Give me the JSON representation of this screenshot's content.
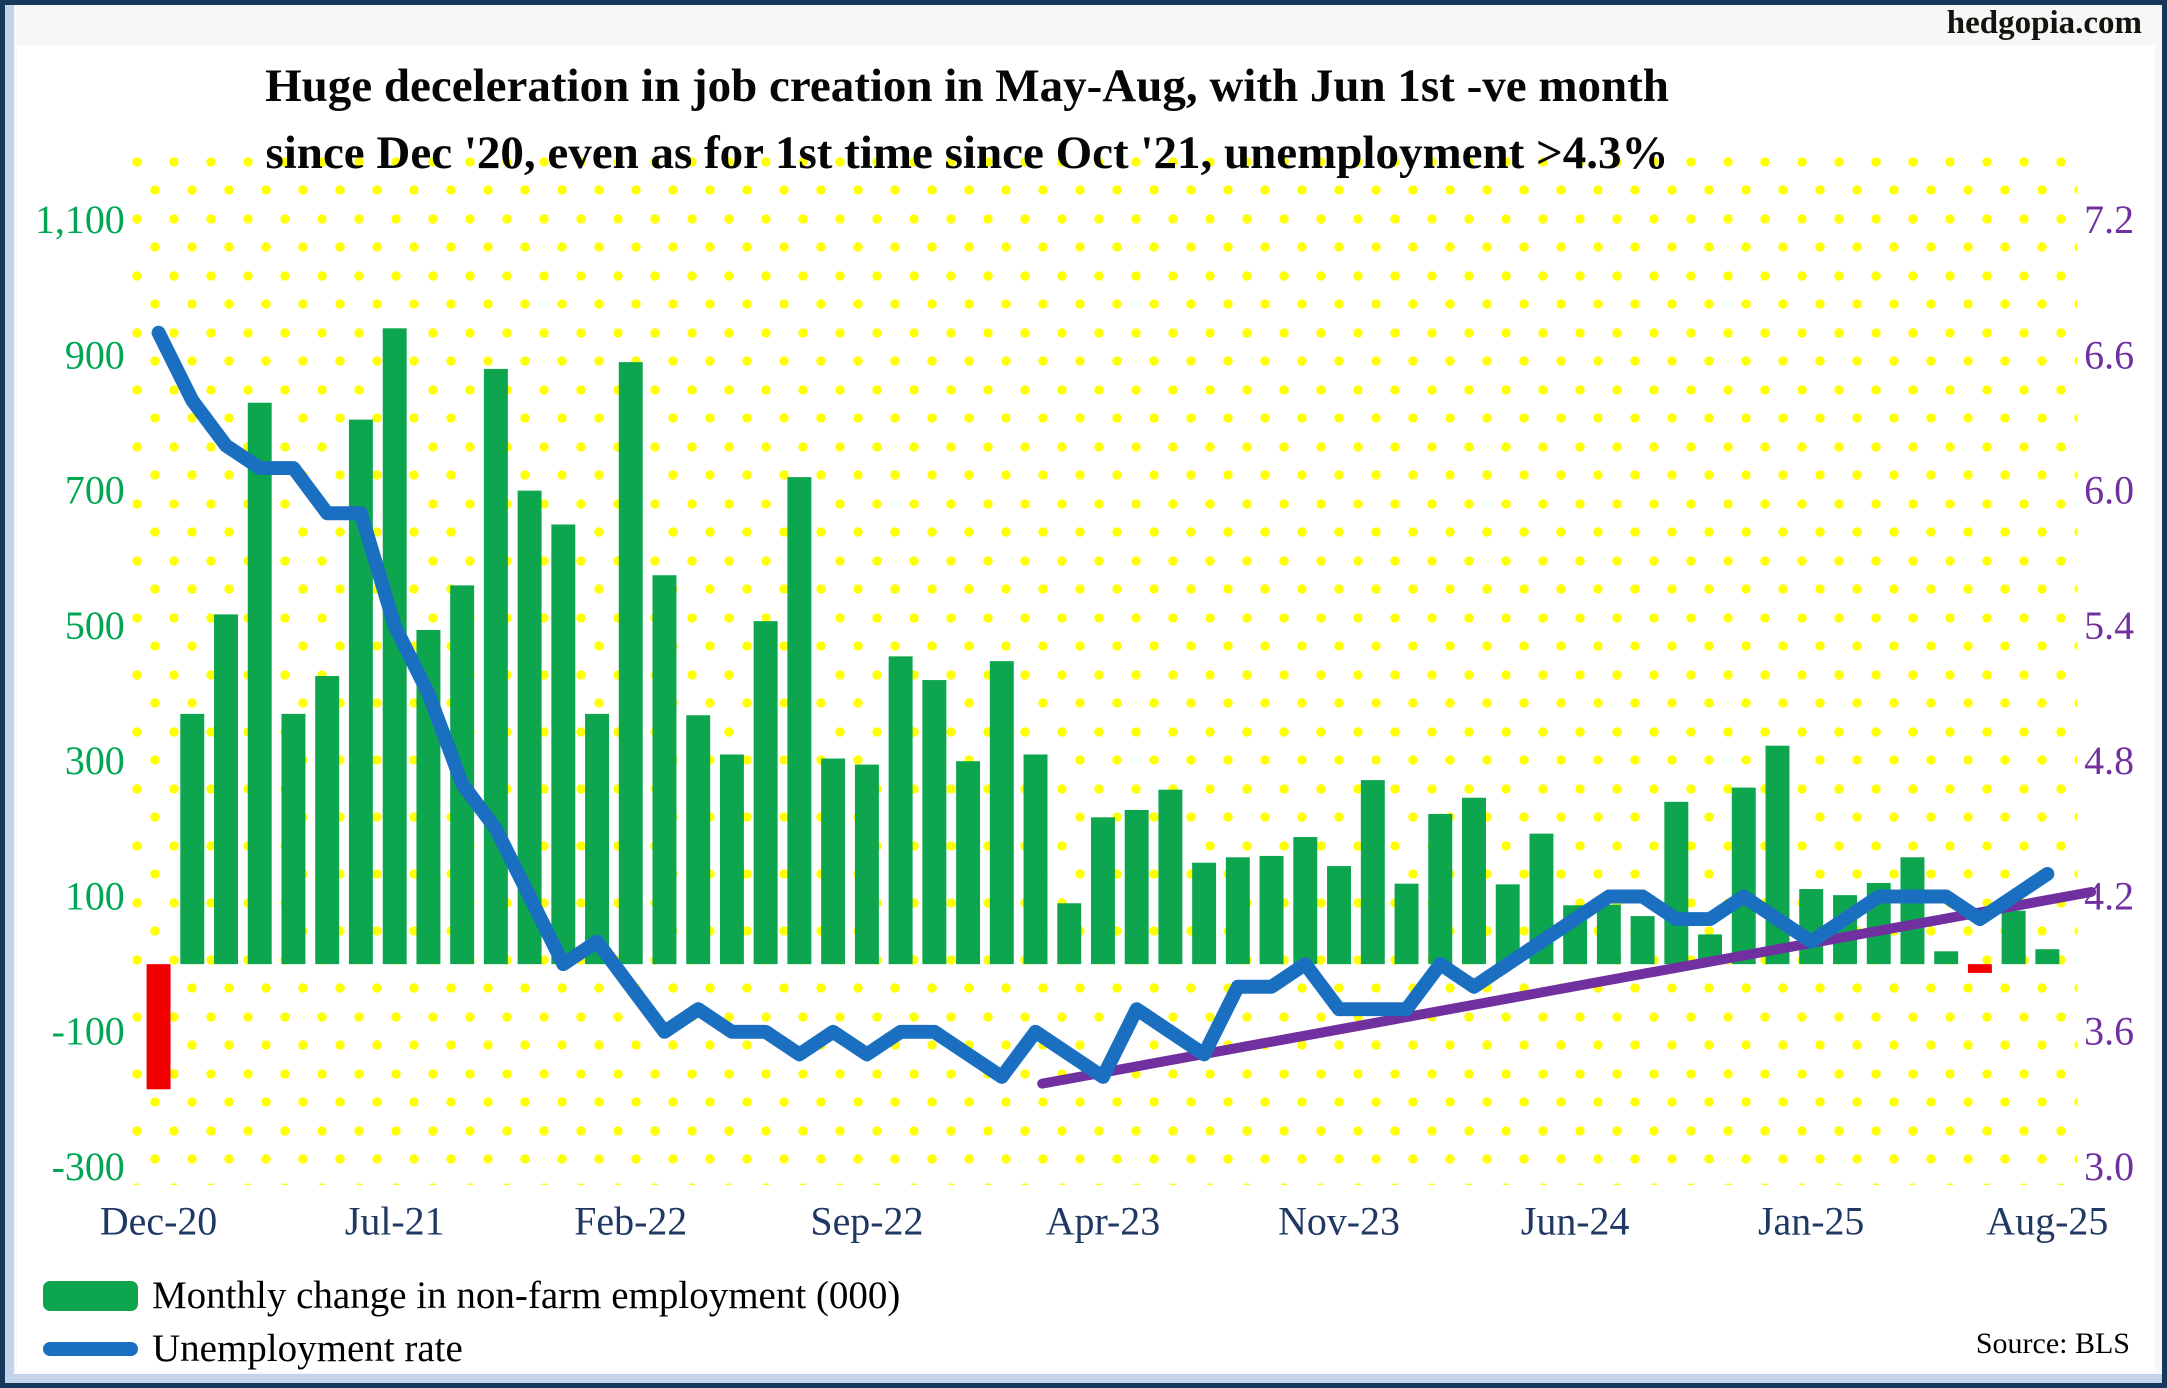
{
  "site": "hedgopia.com",
  "title": {
    "line1": "Huge deceleration in job creation in May-Aug, with Jun 1st -ve month",
    "line2": "since Dec '20, even as for 1st time since Oct '21, unemployment >4.3%"
  },
  "source": "Source: BLS",
  "legend": {
    "bars_label": "Monthly change in non-farm employment (000)",
    "line_label": "Unemployment rate"
  },
  "colors": {
    "bar_positive": "#0DA64F",
    "bar_negative": "#F20000",
    "unemployment_line": "#1B6FC0",
    "trend_line": "#7030A0",
    "left_axis_text": "#00A651",
    "right_axis_text": "#7030A0",
    "x_axis_text": "#1F3864",
    "dot_grid": "#FFFF00",
    "window_border": "#17375D"
  },
  "chart_data": {
    "type": "bar",
    "subtype": "combo-bar-line-dual-axis",
    "title": "Huge deceleration in job creation in May-Aug, with Jun 1st -ve month since Dec '20, even as for 1st time since Oct '21, unemployment >4.3%",
    "categories": [
      "Dec-20",
      "Jan-21",
      "Feb-21",
      "Mar-21",
      "Apr-21",
      "May-21",
      "Jun-21",
      "Jul-21",
      "Aug-21",
      "Sep-21",
      "Oct-21",
      "Nov-21",
      "Dec-21",
      "Jan-22",
      "Feb-22",
      "Mar-22",
      "Apr-22",
      "May-22",
      "Jun-22",
      "Jul-22",
      "Aug-22",
      "Sep-22",
      "Oct-22",
      "Nov-22",
      "Dec-22",
      "Jan-23",
      "Feb-23",
      "Mar-23",
      "Apr-23",
      "May-23",
      "Jun-23",
      "Jul-23",
      "Aug-23",
      "Sep-23",
      "Oct-23",
      "Nov-23",
      "Dec-23",
      "Jan-24",
      "Feb-24",
      "Mar-24",
      "Apr-24",
      "May-24",
      "Jun-24",
      "Jul-24",
      "Aug-24",
      "Sep-24",
      "Oct-24",
      "Nov-24",
      "Dec-24",
      "Jan-25",
      "Feb-25",
      "Mar-25",
      "Apr-25",
      "May-25",
      "Jun-25",
      "Jul-25",
      "Aug-25"
    ],
    "series": [
      {
        "name": "Monthly change in non-farm employment (000)",
        "axis": "left",
        "values": [
          -185,
          370,
          517,
          830,
          370,
          426,
          805,
          940,
          494,
          560,
          880,
          700,
          650,
          370,
          890,
          575,
          368,
          310,
          507,
          720,
          304,
          295,
          455,
          420,
          300,
          448,
          310,
          90,
          217,
          228,
          258,
          150,
          158,
          160,
          188,
          145,
          272,
          119,
          222,
          246,
          118,
          193,
          87,
          88,
          71,
          240,
          44,
          261,
          323,
          111,
          102,
          120,
          158,
          19,
          -13,
          79,
          22
        ]
      },
      {
        "name": "Unemployment rate",
        "axis": "right",
        "values": [
          6.7,
          6.4,
          6.2,
          6.1,
          6.1,
          5.9,
          5.9,
          5.4,
          5.1,
          4.7,
          4.5,
          4.2,
          3.9,
          4.0,
          3.8,
          3.6,
          3.7,
          3.6,
          3.6,
          3.5,
          3.6,
          3.5,
          3.6,
          3.6,
          3.5,
          3.4,
          3.6,
          3.5,
          3.4,
          3.7,
          3.6,
          3.5,
          3.8,
          3.8,
          3.9,
          3.7,
          3.7,
          3.7,
          3.9,
          3.8,
          3.9,
          4.0,
          4.1,
          4.2,
          4.2,
          4.1,
          4.1,
          4.2,
          4.1,
          4.0,
          4.1,
          4.2,
          4.2,
          4.2,
          4.1,
          4.2,
          4.3
        ]
      }
    ],
    "left_axis_ticks": [
      "1,100",
      "900",
      "700",
      "500",
      "300",
      "100",
      "-100",
      "-300"
    ],
    "left_axis_tick_values": [
      1100,
      900,
      700,
      500,
      300,
      100,
      -100,
      -300
    ],
    "left_ylim": [
      -300,
      1100
    ],
    "right_axis_ticks": [
      "7.2",
      "6.6",
      "6.0",
      "5.4",
      "4.8",
      "4.2",
      "3.6",
      "3.0"
    ],
    "right_axis_tick_values": [
      7.2,
      6.6,
      6.0,
      5.4,
      4.8,
      4.2,
      3.6,
      3.0
    ],
    "right_ylim": [
      3.0,
      7.2
    ],
    "x_tick_indices": [
      0,
      7,
      14,
      21,
      28,
      35,
      42,
      49,
      56
    ],
    "x_tick_labels": [
      "Dec-20",
      "Jul-21",
      "Feb-22",
      "Sep-22",
      "Apr-23",
      "Nov-23",
      "Jun-24",
      "Jan-25",
      "Aug-25"
    ],
    "trendline": {
      "axis": "right",
      "x1_index": 26.7,
      "rate1": 3.37,
      "x2_index": 57.8,
      "rate2": 4.22
    },
    "grid": "yellow-dot-pattern",
    "legend_position": "bottom-left",
    "xlabel": "",
    "ylabel_left": "Monthly change in non-farm employment (000)",
    "ylabel_right": "Unemployment rate (%)"
  }
}
